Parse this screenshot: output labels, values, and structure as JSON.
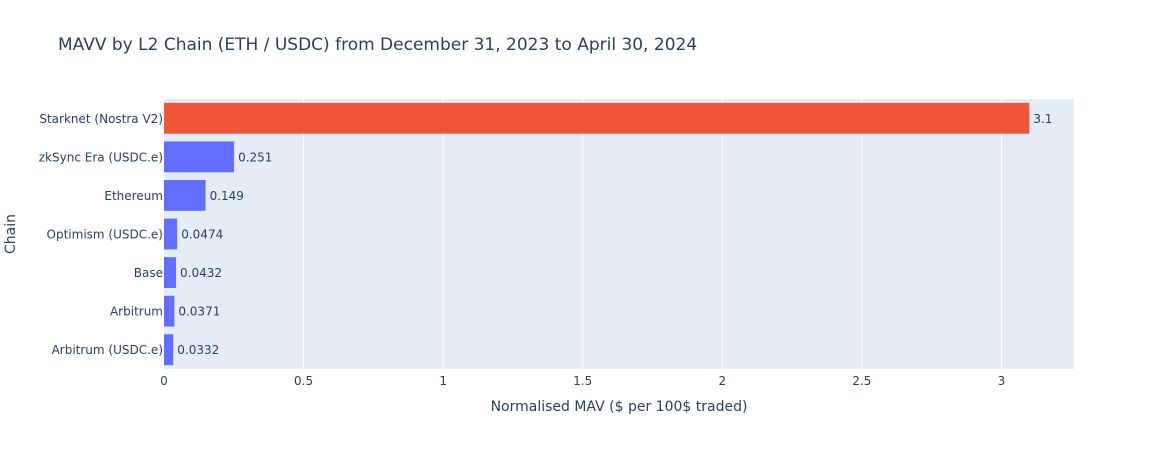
{
  "chart_data": {
    "type": "bar",
    "orientation": "horizontal",
    "title": "MAVV by L2 Chain (ETH / USDC) from December 31, 2023 to April 30, 2024",
    "xlabel": "Normalised MAV ($ per 100$ traded)",
    "ylabel": "Chain",
    "xlim": [
      0,
      3.26
    ],
    "xticks": [
      0,
      0.5,
      1,
      1.5,
      2,
      2.5,
      3
    ],
    "xtick_labels": [
      "0",
      "0.5",
      "1",
      "1.5",
      "2",
      "2.5",
      "3"
    ],
    "grid": true,
    "categories": [
      "Starknet (Nostra V2)",
      "zkSync Era (USDC.e)",
      "Ethereum",
      "Optimism (USDC.e)",
      "Base",
      "Arbitrum",
      "Arbitrum (USDC.e)"
    ],
    "values": [
      3.1,
      0.251,
      0.149,
      0.0474,
      0.0432,
      0.0371,
      0.0332
    ],
    "data_labels": [
      "3.1",
      "0.251",
      "0.149",
      "0.0474",
      "0.0432",
      "0.0371",
      "0.0332"
    ],
    "colors": [
      "#ef553b",
      "#636efa",
      "#636efa",
      "#636efa",
      "#636efa",
      "#636efa",
      "#636efa"
    ],
    "plot_background": "#e5ecf6",
    "text_color": "#2a3f5f"
  }
}
